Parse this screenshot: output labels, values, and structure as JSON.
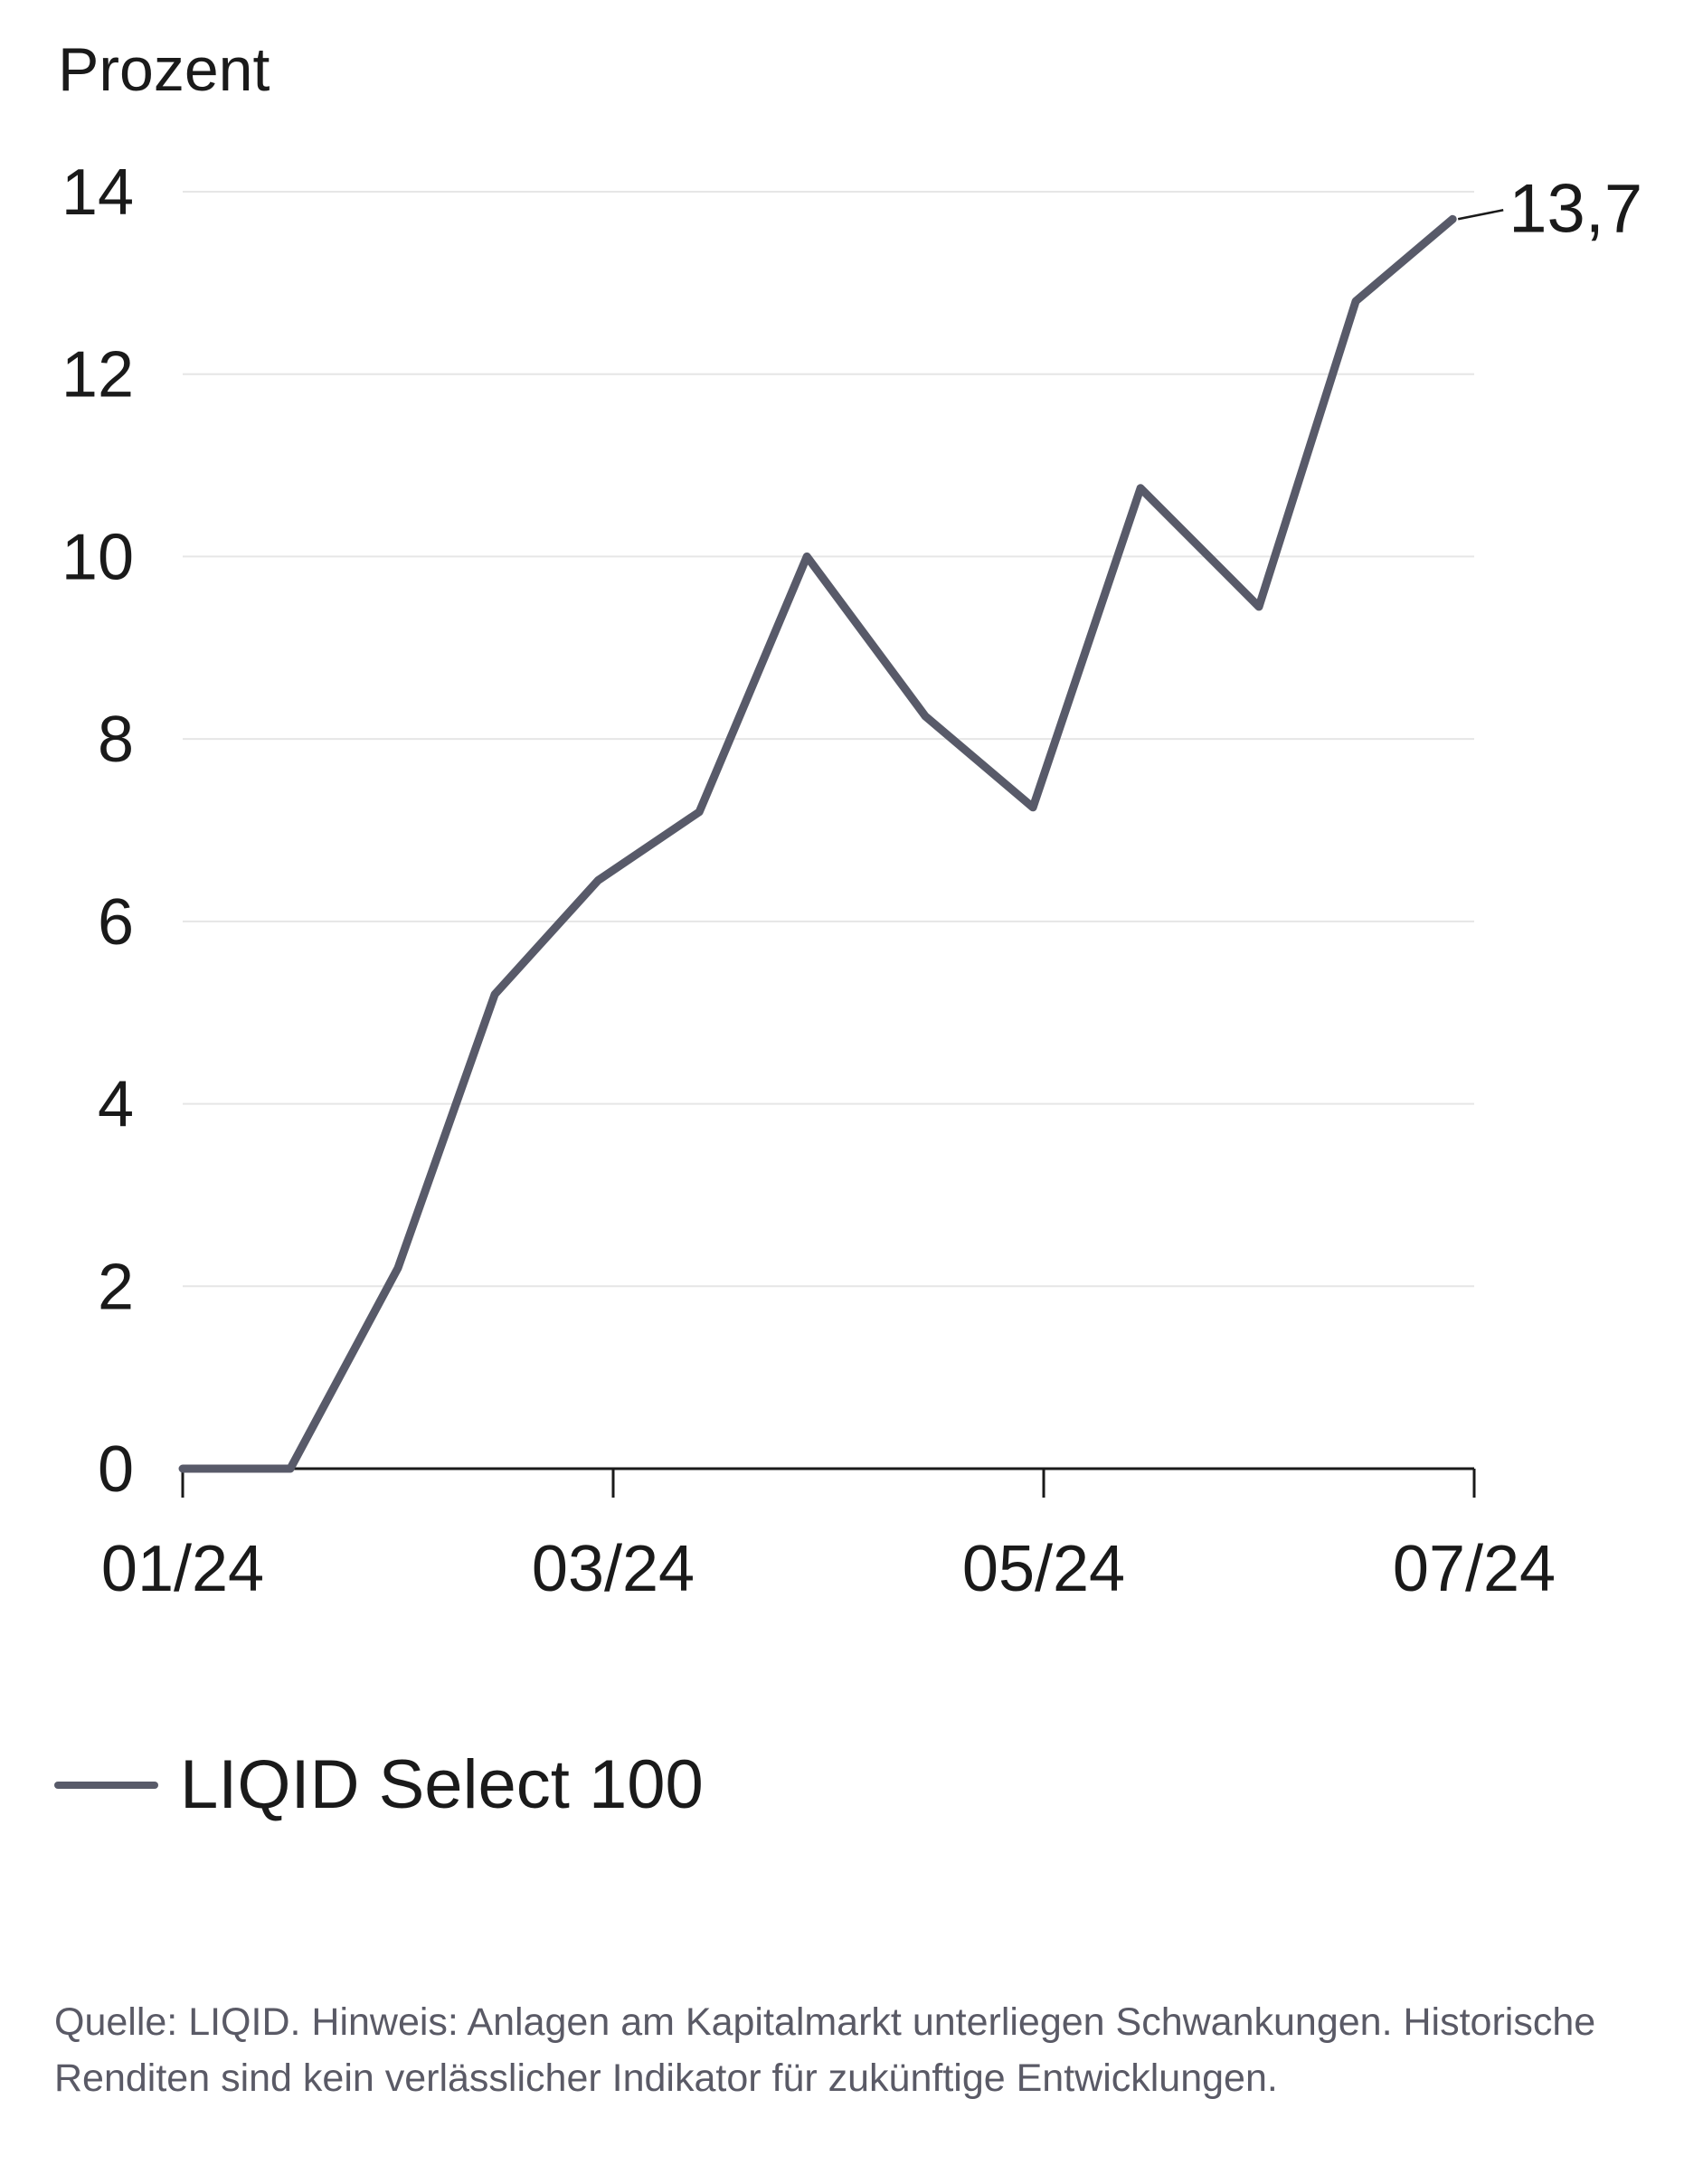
{
  "chart_data": {
    "type": "line",
    "ylabel": "Prozent",
    "ylim": [
      0,
      14
    ],
    "yticks": [
      "0",
      "2",
      "4",
      "6",
      "8",
      "10",
      "12",
      "14"
    ],
    "xlim": [
      0,
      6
    ],
    "xticks": [
      {
        "label": "01/24",
        "x": 0
      },
      {
        "label": "03/24",
        "x": 2
      },
      {
        "label": "05/24",
        "x": 4
      },
      {
        "label": "07/24",
        "x": 6
      }
    ],
    "grid": true,
    "series": [
      {
        "name": "LIQID Select 100",
        "color": "#585a69",
        "points": [
          {
            "x": 0.0,
            "y": 0.0
          },
          {
            "x": 0.5,
            "y": 0.0
          },
          {
            "x": 1.0,
            "y": 2.2
          },
          {
            "x": 1.45,
            "y": 5.2
          },
          {
            "x": 1.93,
            "y": 6.45
          },
          {
            "x": 2.4,
            "y": 7.2
          },
          {
            "x": 2.9,
            "y": 10.0
          },
          {
            "x": 3.45,
            "y": 8.25
          },
          {
            "x": 3.95,
            "y": 7.25
          },
          {
            "x": 4.45,
            "y": 10.75
          },
          {
            "x": 5.0,
            "y": 9.45
          },
          {
            "x": 5.45,
            "y": 12.8
          },
          {
            "x": 5.9,
            "y": 13.7
          }
        ]
      }
    ],
    "annotations": [
      {
        "label": "13,7",
        "x": 5.9,
        "y": 13.7
      }
    ],
    "legend": "bottom-left"
  },
  "legend_label": "LIQID Select 100",
  "footnote": "Quelle: LIQID. Hinweis: Anlagen am Kapitalmarkt unterliegen Schwankungen. Historische Renditen sind kein verlässlicher Indikator für zukünftige Entwicklungen."
}
